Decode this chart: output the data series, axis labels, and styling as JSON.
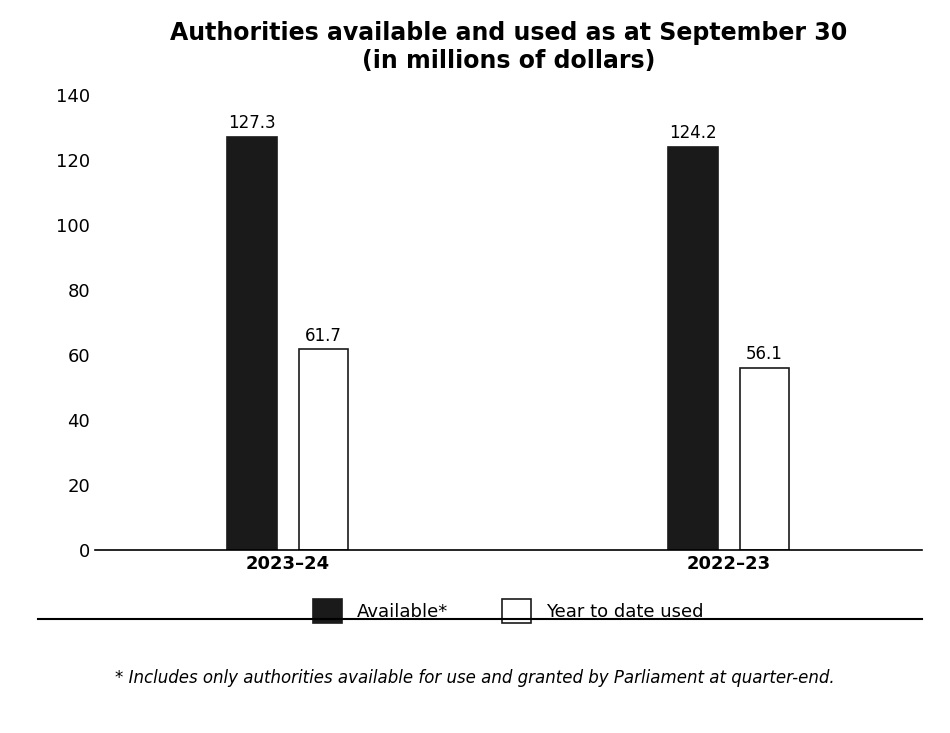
{
  "title_line1": "Authorities available and used as at September 30",
  "title_line2": "(in millions of dollars)",
  "groups": [
    "2023–24",
    "2022–23"
  ],
  "available": [
    127.3,
    124.2
  ],
  "used": [
    61.7,
    56.1
  ],
  "bar_color_available": "#1a1a1a",
  "bar_color_used": "#ffffff",
  "bar_edge_color": "#1a1a1a",
  "ylim": [
    0,
    140
  ],
  "yticks": [
    0,
    20,
    40,
    60,
    80,
    100,
    120,
    140
  ],
  "legend_available_label": "Available*",
  "legend_used_label": "Year to date used",
  "footnote": "* Includes only authorities available for use and granted by Parliament at quarter-end.",
  "bar_width": 0.18,
  "title_fontsize": 17,
  "label_fontsize": 13,
  "tick_fontsize": 13,
  "annotation_fontsize": 12,
  "legend_fontsize": 13,
  "footnote_fontsize": 12,
  "background_color": "#ffffff",
  "group_centers": [
    1.0,
    2.6
  ],
  "bar_spacing": 0.08,
  "xlim_left": 0.3,
  "xlim_right": 3.3
}
